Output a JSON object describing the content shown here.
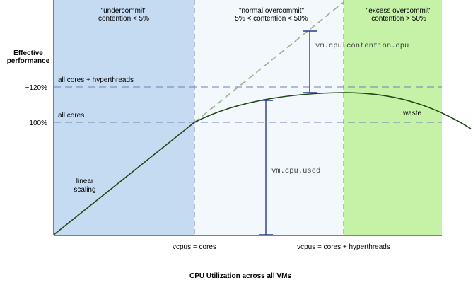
{
  "zones": {
    "undercommit": {
      "line1": "\"undercommit\"",
      "line2": "contention < 5%",
      "color": "#c5dbf2"
    },
    "normal": {
      "line1": "\"normal overcommit\"",
      "line2": "5% < contention < 50%",
      "color": "#f3f8fd"
    },
    "excess": {
      "line1": "\"excess overcommit\"",
      "line2": "contention > 50%",
      "color": "#c5f2a7"
    }
  },
  "yaxis": {
    "title_line1": "Effective",
    "title_line2": "performance",
    "tick_120": "~120%",
    "tick_100": "100%"
  },
  "levels": {
    "hyperthreads_label": "all cores + hyperthreads",
    "cores_label": "all cores"
  },
  "xaxis": {
    "tick_cores": "vcpus = cores",
    "tick_hyperthreads": "vcpus = cores + hyperthreads",
    "title": "CPU Utilization across all VMs"
  },
  "annotations": {
    "linear_line1": "linear",
    "linear_line2": "scaling",
    "waste": "waste",
    "contention_metric": "vm.cpu.contention.cpu",
    "used_metric": "vm.cpu.used"
  },
  "colors": {
    "curve": "#1f4a14",
    "ideal_line": "#94b38a",
    "dashed_guides": "#6f7fb4",
    "measure_bars": "#2b3a8a",
    "axis": "#000000"
  }
}
